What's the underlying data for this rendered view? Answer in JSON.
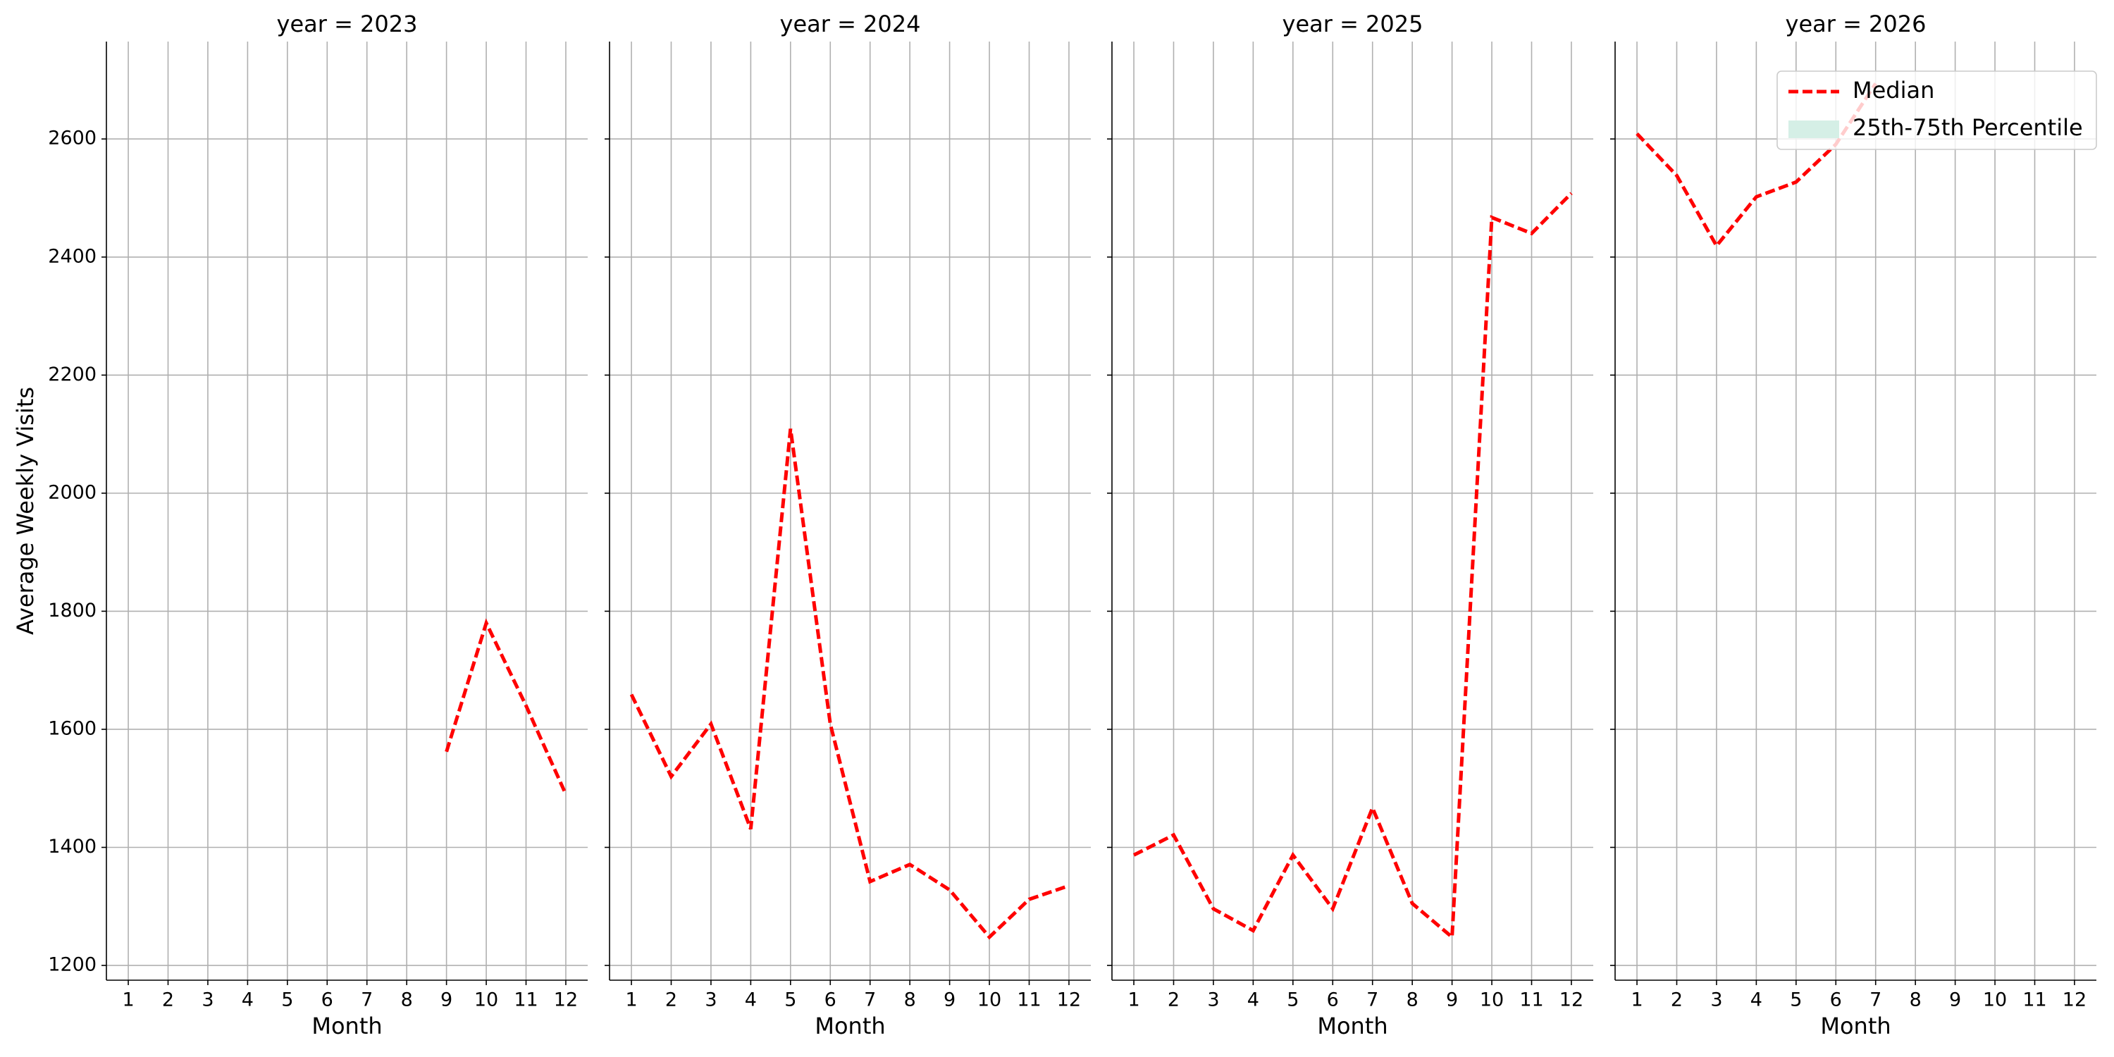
{
  "chart_data": [
    {
      "type": "line",
      "title": "year = 2023",
      "xlabel": "Month",
      "ylabel": "Average Weekly Visits",
      "x": [
        1,
        2,
        3,
        4,
        5,
        6,
        7,
        8,
        9,
        10,
        11,
        12
      ],
      "xlim": [
        0.45,
        12.55
      ],
      "xticks": [
        1,
        2,
        3,
        4,
        5,
        6,
        7,
        8,
        9,
        10,
        11,
        12
      ],
      "ylim": [
        1175,
        2765
      ],
      "yticks": [
        1200,
        1400,
        1600,
        1800,
        2000,
        2200,
        2400,
        2600
      ],
      "grid": true,
      "series": [
        {
          "color": "#ff0000",
          "values": [
            null,
            null,
            null,
            null,
            null,
            null,
            null,
            null,
            1562,
            1780,
            1640,
            1490
          ]
        }
      ]
    },
    {
      "type": "line",
      "title": "year = 2024",
      "xlabel": "Month",
      "x": [
        1,
        2,
        3,
        4,
        5,
        6,
        7,
        8,
        9,
        10,
        11,
        12
      ],
      "xlim": [
        0.45,
        12.55
      ],
      "xticks": [
        1,
        2,
        3,
        4,
        5,
        6,
        7,
        8,
        9,
        10,
        11,
        12
      ],
      "ylim": [
        1175,
        2765
      ],
      "yticks": [
        1200,
        1400,
        1600,
        1800,
        2000,
        2200,
        2400,
        2600
      ],
      "grid": true,
      "series": [
        {
          "color": "#ff0000",
          "values": [
            1659,
            1520,
            1609,
            1431,
            2109,
            1609,
            1342,
            1371,
            1328,
            1248,
            1312,
            1335
          ]
        }
      ]
    },
    {
      "type": "line",
      "title": "year = 2025",
      "xlabel": "Month",
      "x": [
        1,
        2,
        3,
        4,
        5,
        6,
        7,
        8,
        9,
        10,
        11,
        12
      ],
      "xlim": [
        0.45,
        12.55
      ],
      "xticks": [
        1,
        2,
        3,
        4,
        5,
        6,
        7,
        8,
        9,
        10,
        11,
        12
      ],
      "ylim": [
        1175,
        2765
      ],
      "yticks": [
        1200,
        1400,
        1600,
        1800,
        2000,
        2200,
        2400,
        2600
      ],
      "grid": true,
      "series": [
        {
          "color": "#ff0000",
          "values": [
            1387,
            1421,
            1296,
            1259,
            1387,
            1296,
            1467,
            1305,
            1248,
            2467,
            2440,
            2508
          ]
        }
      ]
    },
    {
      "type": "line",
      "title": "year = 2026",
      "xlabel": "Month",
      "x": [
        1,
        2,
        3,
        4,
        5,
        6,
        7,
        8,
        9,
        10,
        11,
        12
      ],
      "xlim": [
        0.45,
        12.55
      ],
      "xticks": [
        1,
        2,
        3,
        4,
        5,
        6,
        7,
        8,
        9,
        10,
        11,
        12
      ],
      "ylim": [
        1175,
        2765
      ],
      "yticks": [
        1200,
        1400,
        1600,
        1800,
        2000,
        2200,
        2400,
        2600
      ],
      "grid": true,
      "series": [
        {
          "name": "Median",
          "color": "#ff0000",
          "values": [
            2609,
            2538,
            2419,
            2502,
            2527,
            2591,
            2694,
            null,
            null,
            null,
            null,
            null
          ]
        }
      ],
      "band": {
        "name": "25th-75th Percentile",
        "color": "#d5efe6"
      },
      "legend": "upper right"
    }
  ]
}
